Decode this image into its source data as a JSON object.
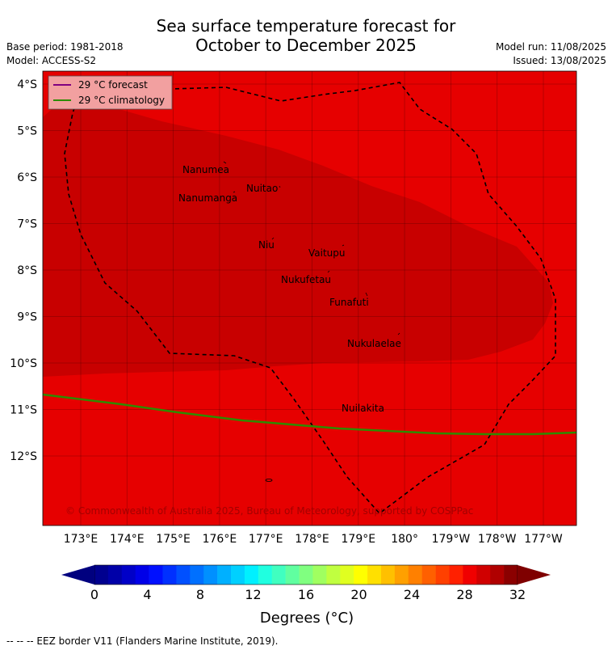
{
  "title": {
    "line1": "Sea surface temperature forecast for",
    "line2": "October to December 2025"
  },
  "meta": {
    "base_period": "Base period: 1981-2018",
    "model": "Model: ACCESS-S2",
    "model_run": "Model run: 11/08/2025",
    "issued": "Issued: 13/08/2025"
  },
  "legend": {
    "forecast": "29 °C  forecast",
    "climatology": "29 °C  climatology",
    "forecast_color": "#800080",
    "climatology_color": "#2e8b00"
  },
  "map": {
    "lat_labels": [
      "4°S",
      "5°S",
      "6°S",
      "7°S",
      "8°S",
      "9°S",
      "10°S",
      "11°S",
      "12°S"
    ],
    "lon_labels": [
      "173°E",
      "174°E",
      "175°E",
      "176°E",
      "177°E",
      "178°E",
      "179°E",
      "180°",
      "179°W",
      "178°W",
      "177°W"
    ],
    "fill_color": "#e60000",
    "warm_zone_color": "#c80000",
    "islands": [
      "Nanumea",
      "Nuitao",
      "Nanumanga",
      "Niu",
      "Vaitupu",
      "Nukufetau",
      "Funafuti",
      "Nukulaelae",
      "Nuilakita"
    ],
    "copyright": "© Commonwealth of Australia 2025, Bureau of Meteorology, supported by COSPPac"
  },
  "colorbar": {
    "ticks": [
      "0",
      "4",
      "8",
      "12",
      "16",
      "20",
      "24",
      "28",
      "32"
    ],
    "label": "Degrees (°C)",
    "colors": [
      "#00008f",
      "#0000a8",
      "#0000c8",
      "#0000e8",
      "#0010ff",
      "#0030ff",
      "#0050ff",
      "#0070ff",
      "#0090ff",
      "#00b0ff",
      "#00d0ff",
      "#00f0ff",
      "#20ffe0",
      "#40ffc0",
      "#60ffa0",
      "#80ff80",
      "#a0ff60",
      "#c0ff40",
      "#e0ff20",
      "#ffff00",
      "#ffe000",
      "#ffc000",
      "#ffa000",
      "#ff8000",
      "#ff6000",
      "#ff4000",
      "#ff2000",
      "#f00000",
      "#d00000",
      "#b00000",
      "#8b0000"
    ],
    "under_color": "#00007f",
    "over_color": "#7f0000"
  },
  "footer": "--  --  -- EEZ border V11 (Flanders Marine Institute, 2019)."
}
